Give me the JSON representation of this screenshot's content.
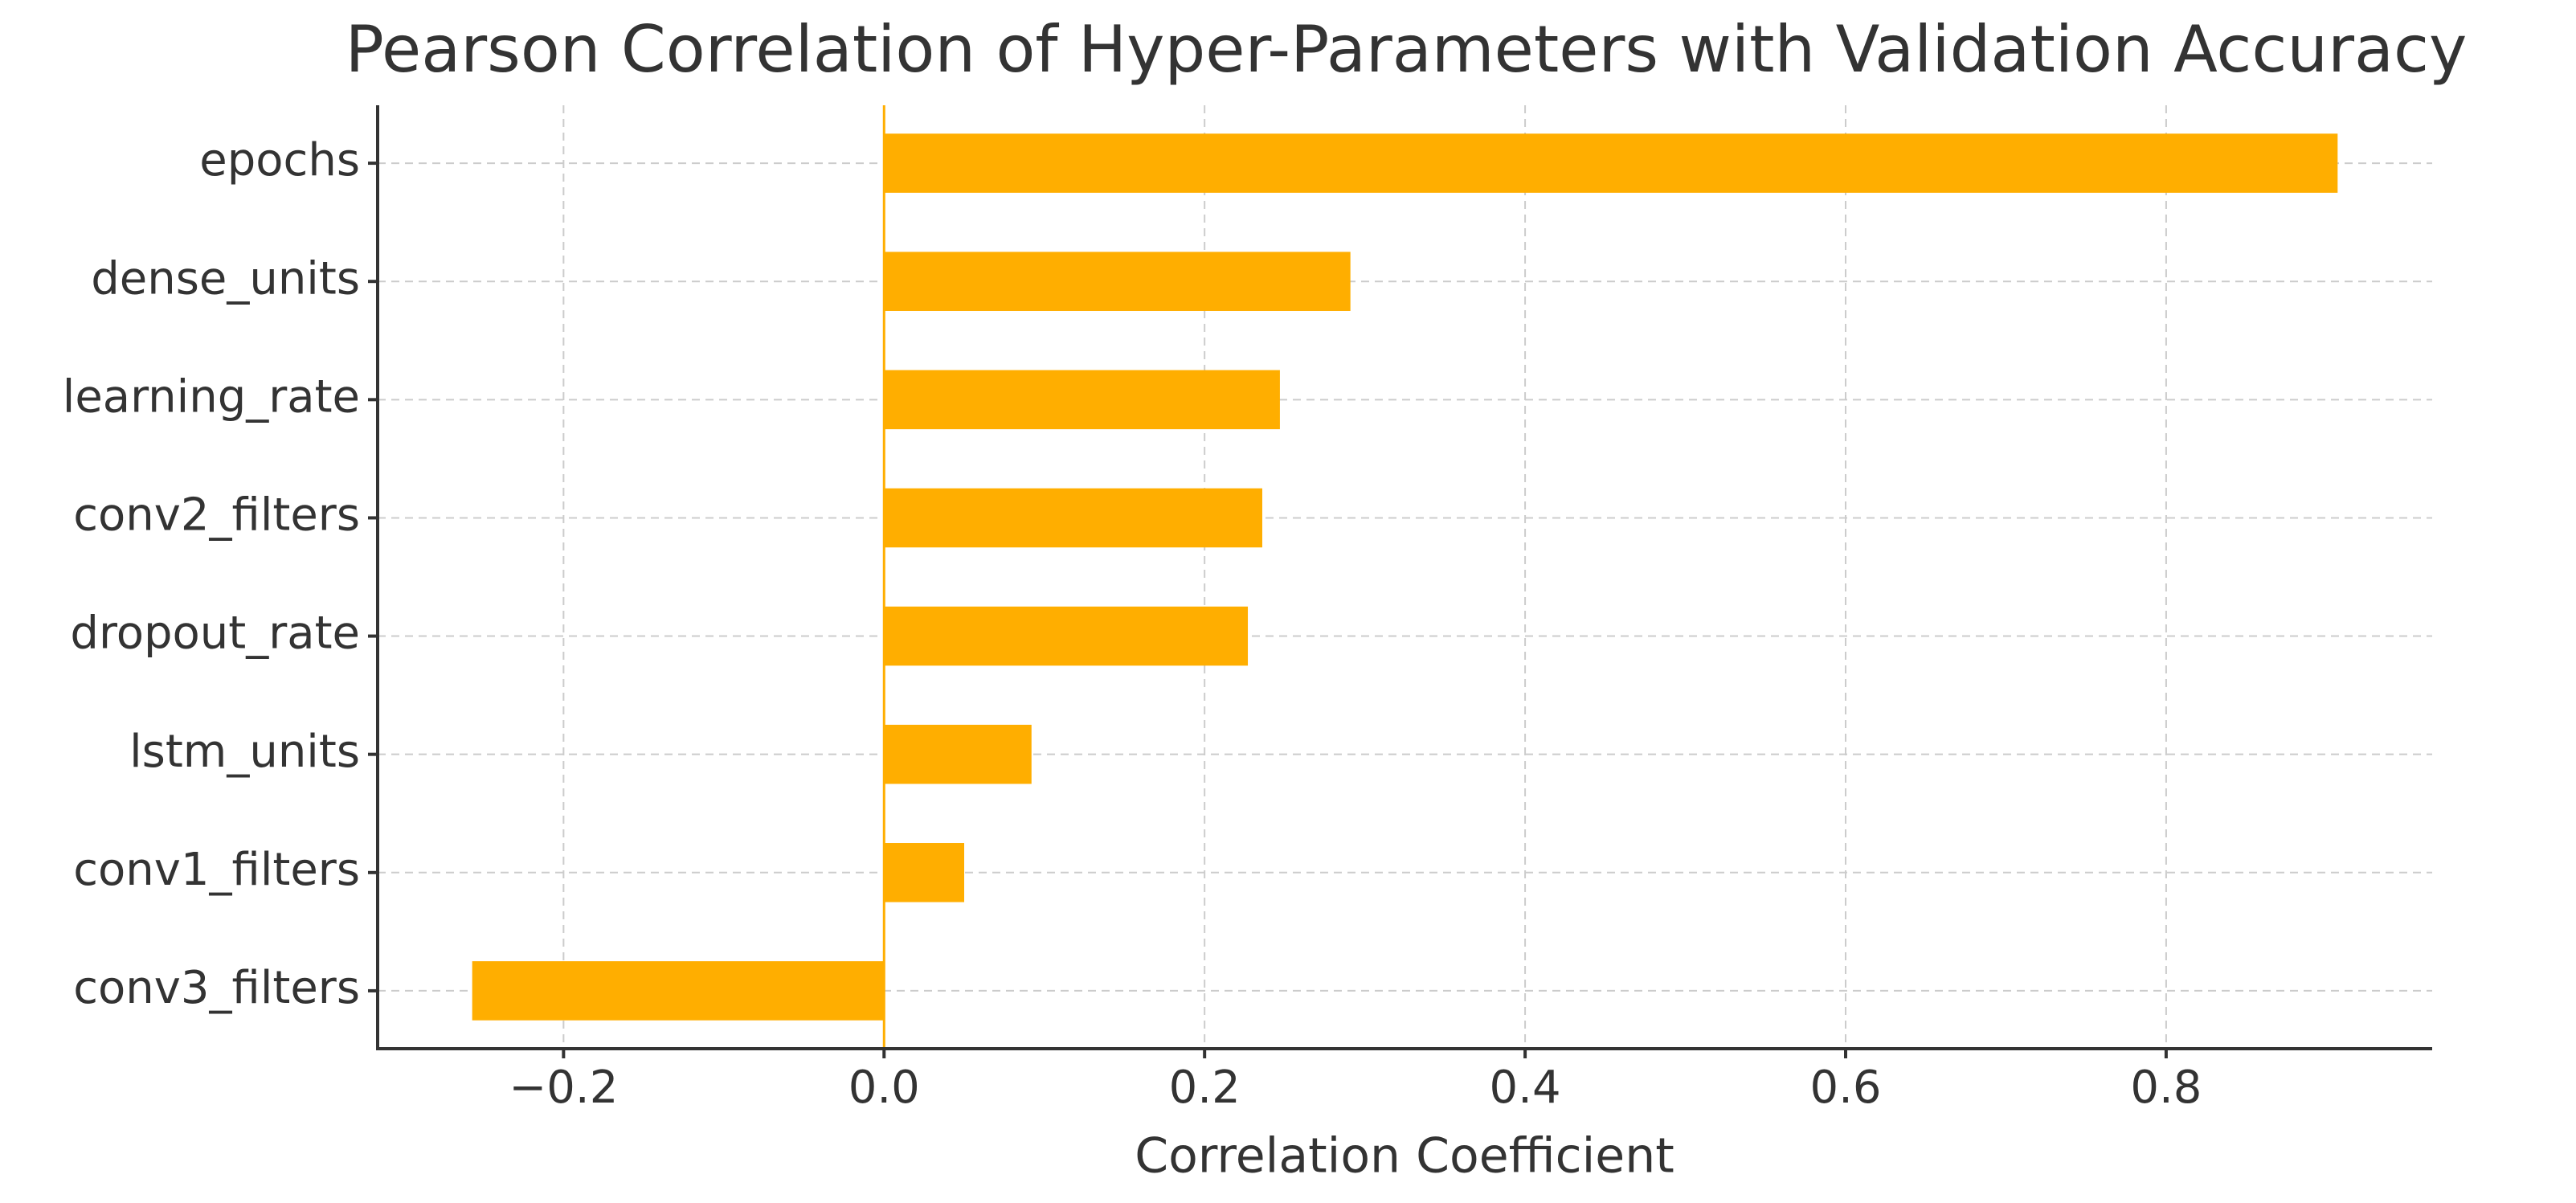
{
  "chart_data": {
    "type": "barh",
    "title": "Pearson Correlation of Hyper-Parameters with Validation Accuracy",
    "xlabel": "Correlation Coefficient",
    "categories": [
      "epochs",
      "dense_units",
      "learning_rate",
      "conv2_filters",
      "dropout_rate",
      "lstm_units",
      "conv1_filters",
      "conv3_filters"
    ],
    "values": [
      0.907,
      0.291,
      0.247,
      0.236,
      0.227,
      0.092,
      0.05,
      -0.257
    ],
    "color": "#ffae00",
    "xlim": [
      -0.316,
      0.966
    ],
    "xticks": [
      {
        "value": -0.2,
        "label": "−0.2"
      },
      {
        "value": 0,
        "label": "0.0"
      },
      0.2,
      0.4,
      0.6,
      0.8
    ],
    "grid": true
  }
}
